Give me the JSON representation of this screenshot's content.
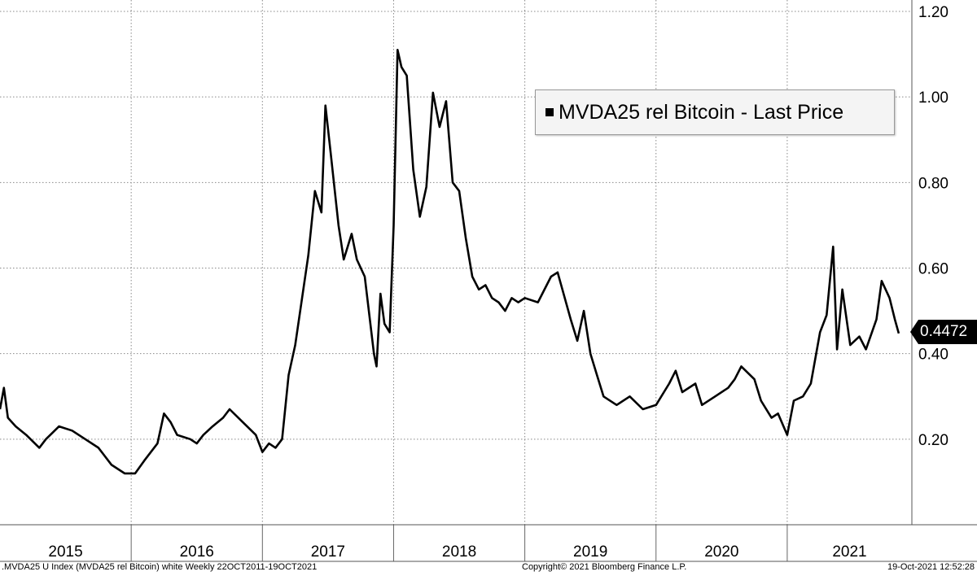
{
  "chart_data": {
    "type": "line",
    "series": [
      {
        "name": "MVDA25 rel Bitcoin - Last Price",
        "color": "#000000",
        "points": [
          [
            2015.0,
            0.27
          ],
          [
            2015.03,
            0.32
          ],
          [
            2015.06,
            0.25
          ],
          [
            2015.12,
            0.23
          ],
          [
            2015.2,
            0.21
          ],
          [
            2015.3,
            0.18
          ],
          [
            2015.35,
            0.2
          ],
          [
            2015.45,
            0.23
          ],
          [
            2015.55,
            0.22
          ],
          [
            2015.65,
            0.2
          ],
          [
            2015.75,
            0.18
          ],
          [
            2015.85,
            0.14
          ],
          [
            2015.95,
            0.12
          ],
          [
            2016.03,
            0.12
          ],
          [
            2016.1,
            0.15
          ],
          [
            2016.2,
            0.19
          ],
          [
            2016.25,
            0.26
          ],
          [
            2016.3,
            0.24
          ],
          [
            2016.35,
            0.21
          ],
          [
            2016.45,
            0.2
          ],
          [
            2016.5,
            0.19
          ],
          [
            2016.55,
            0.21
          ],
          [
            2016.62,
            0.23
          ],
          [
            2016.7,
            0.25
          ],
          [
            2016.75,
            0.27
          ],
          [
            2016.85,
            0.24
          ],
          [
            2016.95,
            0.21
          ],
          [
            2017.0,
            0.17
          ],
          [
            2017.05,
            0.19
          ],
          [
            2017.1,
            0.18
          ],
          [
            2017.15,
            0.2
          ],
          [
            2017.2,
            0.35
          ],
          [
            2017.25,
            0.42
          ],
          [
            2017.35,
            0.63
          ],
          [
            2017.4,
            0.78
          ],
          [
            2017.45,
            0.73
          ],
          [
            2017.48,
            0.98
          ],
          [
            2017.52,
            0.87
          ],
          [
            2017.58,
            0.7
          ],
          [
            2017.62,
            0.62
          ],
          [
            2017.68,
            0.68
          ],
          [
            2017.72,
            0.62
          ],
          [
            2017.78,
            0.58
          ],
          [
            2017.85,
            0.4
          ],
          [
            2017.87,
            0.37
          ],
          [
            2017.9,
            0.54
          ],
          [
            2017.93,
            0.47
          ],
          [
            2017.97,
            0.45
          ],
          [
            2018.0,
            0.7
          ],
          [
            2018.03,
            1.11
          ],
          [
            2018.06,
            1.07
          ],
          [
            2018.1,
            1.05
          ],
          [
            2018.15,
            0.83
          ],
          [
            2018.2,
            0.72
          ],
          [
            2018.25,
            0.79
          ],
          [
            2018.3,
            1.01
          ],
          [
            2018.35,
            0.93
          ],
          [
            2018.4,
            0.99
          ],
          [
            2018.45,
            0.8
          ],
          [
            2018.5,
            0.78
          ],
          [
            2018.55,
            0.67
          ],
          [
            2018.6,
            0.58
          ],
          [
            2018.65,
            0.55
          ],
          [
            2018.7,
            0.56
          ],
          [
            2018.75,
            0.53
          ],
          [
            2018.8,
            0.52
          ],
          [
            2018.85,
            0.5
          ],
          [
            2018.9,
            0.53
          ],
          [
            2018.95,
            0.52
          ],
          [
            2019.0,
            0.53
          ],
          [
            2019.1,
            0.52
          ],
          [
            2019.2,
            0.58
          ],
          [
            2019.25,
            0.59
          ],
          [
            2019.35,
            0.48
          ],
          [
            2019.4,
            0.43
          ],
          [
            2019.45,
            0.5
          ],
          [
            2019.5,
            0.4
          ],
          [
            2019.55,
            0.35
          ],
          [
            2019.6,
            0.3
          ],
          [
            2019.7,
            0.28
          ],
          [
            2019.8,
            0.3
          ],
          [
            2019.9,
            0.27
          ],
          [
            2020.0,
            0.28
          ],
          [
            2020.1,
            0.33
          ],
          [
            2020.15,
            0.36
          ],
          [
            2020.2,
            0.31
          ],
          [
            2020.3,
            0.33
          ],
          [
            2020.35,
            0.28
          ],
          [
            2020.45,
            0.3
          ],
          [
            2020.55,
            0.32
          ],
          [
            2020.6,
            0.34
          ],
          [
            2020.65,
            0.37
          ],
          [
            2020.75,
            0.34
          ],
          [
            2020.8,
            0.29
          ],
          [
            2020.88,
            0.25
          ],
          [
            2020.93,
            0.26
          ],
          [
            2021.0,
            0.21
          ],
          [
            2021.05,
            0.29
          ],
          [
            2021.12,
            0.3
          ],
          [
            2021.18,
            0.33
          ],
          [
            2021.25,
            0.45
          ],
          [
            2021.3,
            0.49
          ],
          [
            2021.35,
            0.65
          ],
          [
            2021.38,
            0.41
          ],
          [
            2021.42,
            0.55
          ],
          [
            2021.48,
            0.42
          ],
          [
            2021.55,
            0.44
          ],
          [
            2021.6,
            0.41
          ],
          [
            2021.68,
            0.48
          ],
          [
            2021.72,
            0.57
          ],
          [
            2021.78,
            0.53
          ],
          [
            2021.82,
            0.48
          ],
          [
            2021.85,
            0.4472
          ]
        ]
      }
    ],
    "x_tick_labels": [
      "2015",
      "2016",
      "2017",
      "2018",
      "2019",
      "2020",
      "2021"
    ],
    "xlim": [
      2015.0,
      2021.95
    ],
    "y_ticks": [
      0.2,
      0.4,
      0.6,
      0.8,
      1.0,
      1.2
    ],
    "y_tick_labels": [
      "0.20",
      "0.40",
      "0.60",
      "0.80",
      "1.00",
      "1.20"
    ],
    "ylim": [
      0.0,
      1.2
    ],
    "y_axis_position": "right",
    "grid": true,
    "legend_position": "top-right",
    "last_value_label": "0.4472"
  },
  "legend": {
    "label": "MVDA25 rel Bitcoin - Last Price"
  },
  "footer": {
    "left": ".MVDA25 U Index (MVDA25 rel Bitcoin) white  Weekly 22OCT2011-19OCT2021",
    "center": "Copyright© 2021 Bloomberg Finance L.P.",
    "right": "19-Oct-2021 12:52:28"
  }
}
